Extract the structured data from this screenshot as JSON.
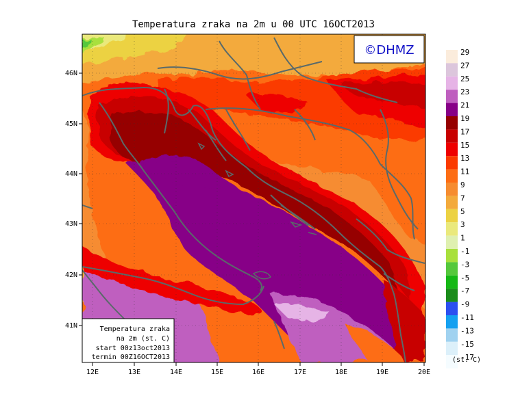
{
  "title": "Temperatura zraka na 2m u 00 UTC 16OCT2013",
  "logo": "©DHMZ",
  "lat_ticks": [
    "46N",
    "45N",
    "44N",
    "43N",
    "42N",
    "41N"
  ],
  "lon_ticks": [
    "12E",
    "13E",
    "14E",
    "15E",
    "16E",
    "17E",
    "18E",
    "19E",
    "20E"
  ],
  "info_box": {
    "line1": "Temperatura zraka",
    "line2": "na 2m (st. C)",
    "line3": "start 00z13oct2013",
    "line4": "termin 00Z16OCT2013"
  },
  "legend": {
    "unit": "(st. C)",
    "labels": [
      "29",
      "27",
      "25",
      "23",
      "21",
      "19",
      "17",
      "15",
      "13",
      "11",
      "9",
      "7",
      "5",
      "3",
      "1",
      "-1",
      "-3",
      "-5",
      "-7",
      "-9",
      "-11",
      "-13",
      "-15",
      "-17"
    ],
    "colors": [
      "#fbecdc",
      "#dcc6dc",
      "#e6b4e6",
      "#bf5fbf",
      "#870087",
      "#960000",
      "#c80000",
      "#ee0000",
      "#fb3a00",
      "#fd6d14",
      "#f68c30",
      "#f3aa3c",
      "#ecd243",
      "#eae97c",
      "#dff0b0",
      "#a8e03c",
      "#55c83c",
      "#15b815",
      "#1a8c1a",
      "#2c4ff0",
      "#14a0f0",
      "#a0d2f0",
      "#dcf0fa",
      "#f5fcff"
    ]
  }
}
